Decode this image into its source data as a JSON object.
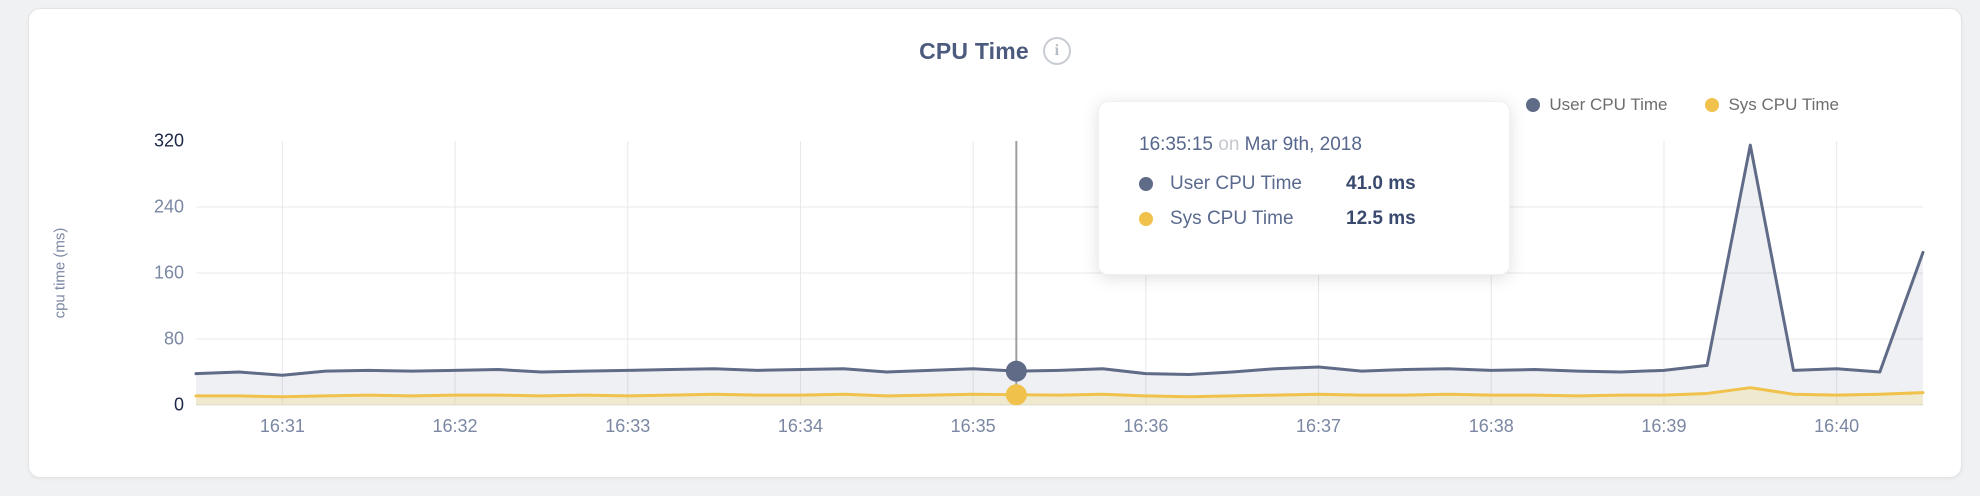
{
  "card": {
    "title": "CPU Time",
    "info_icon_glyph": "i"
  },
  "legend": {
    "items": [
      {
        "label": "User CPU Time",
        "color": "#5f6b87"
      },
      {
        "label": "Sys CPU Time",
        "color": "#f0c24b"
      }
    ]
  },
  "tooltip": {
    "time": "16:35:15",
    "conjunction": "on",
    "date": "Mar 9th, 2018",
    "rows": [
      {
        "name": "User CPU Time",
        "value": "41.0 ms",
        "color": "#5f6b87"
      },
      {
        "name": "Sys CPU Time",
        "value": "12.5 ms",
        "color": "#f0c24b"
      }
    ]
  },
  "chart_data": {
    "type": "area",
    "title": "CPU Time",
    "ylabel": "cpu time (ms)",
    "xlabel": "",
    "x_unit": "seconds after 16:30:00, samples every 15 s",
    "xlim": [
      30,
      630
    ],
    "ylim": [
      0,
      320
    ],
    "grid": true,
    "legend_position": "top-right",
    "grid_color": "#e7e8ea",
    "axis_line_color": "#dfe1e4",
    "crosshair_color": "#9c9ea1",
    "y_ticks": [
      {
        "v": 0,
        "label": "0",
        "em": true
      },
      {
        "v": 80,
        "label": "80",
        "em": false
      },
      {
        "v": 160,
        "label": "160",
        "em": false
      },
      {
        "v": 240,
        "label": "240",
        "em": false
      },
      {
        "v": 320,
        "label": "320",
        "em": true
      }
    ],
    "x_ticks": [
      {
        "t": 60,
        "label": "16:31"
      },
      {
        "t": 120,
        "label": "16:32"
      },
      {
        "t": 180,
        "label": "16:33"
      },
      {
        "t": 240,
        "label": "16:34"
      },
      {
        "t": 300,
        "label": "16:35"
      },
      {
        "t": 360,
        "label": "16:36"
      },
      {
        "t": 420,
        "label": "16:37"
      },
      {
        "t": 480,
        "label": "16:38"
      },
      {
        "t": 540,
        "label": "16:39"
      },
      {
        "t": 600,
        "label": "16:40"
      }
    ],
    "x": [
      30,
      45,
      60,
      75,
      90,
      105,
      120,
      135,
      150,
      165,
      180,
      195,
      210,
      225,
      240,
      255,
      270,
      285,
      300,
      315,
      330,
      345,
      360,
      375,
      390,
      405,
      420,
      435,
      450,
      465,
      480,
      495,
      510,
      525,
      540,
      555,
      570,
      585,
      600,
      615,
      630
    ],
    "series": [
      {
        "name": "User CPU Time",
        "color": "#5f6b87",
        "fill": "rgba(99,111,138,0.10)",
        "values": [
          38,
          40,
          36,
          41,
          42,
          41,
          42,
          43,
          40,
          41,
          42,
          43,
          44,
          42,
          43,
          44,
          40,
          42,
          44,
          41,
          42,
          44,
          38,
          37,
          40,
          44,
          46,
          41,
          43,
          44,
          42,
          43,
          41,
          40,
          42,
          48,
          315,
          42,
          44,
          40,
          185
        ]
      },
      {
        "name": "Sys CPU Time",
        "color": "#f0c24b",
        "fill": "rgba(240,220,140,0.35)",
        "values": [
          11,
          11,
          10,
          11,
          12,
          11,
          12,
          12,
          11,
          12,
          11,
          12,
          13,
          12,
          12,
          13,
          11,
          12,
          13,
          12.5,
          12,
          13,
          11,
          10,
          11,
          12,
          13,
          12,
          12,
          13,
          12,
          12,
          11,
          12,
          12,
          14,
          21,
          13,
          12,
          13,
          15
        ]
      }
    ],
    "hover_index": 19
  }
}
